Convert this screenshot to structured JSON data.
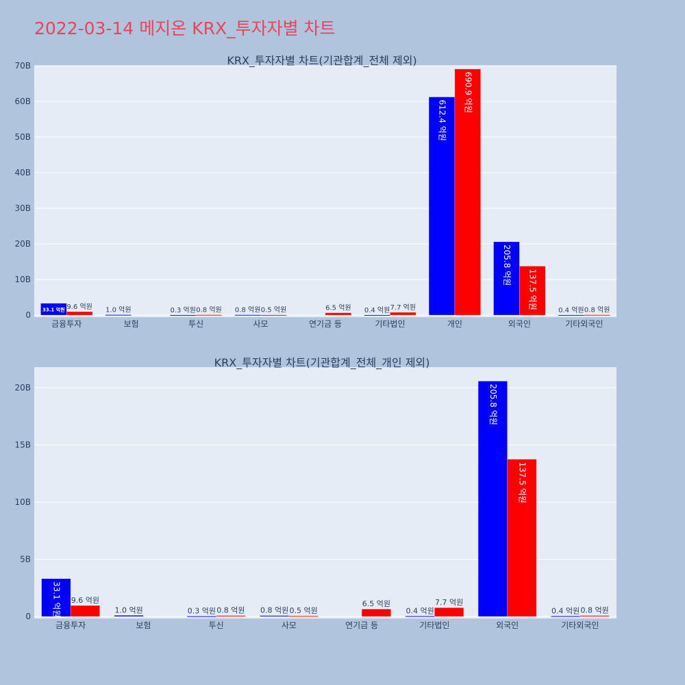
{
  "page_title": "2022-03-14 메지온 KRX_투자자별 차트",
  "colors": {
    "buy": "#0000ff",
    "sell": "#ff0000",
    "plot_bg": "#e5ecf6",
    "page_bg": "#b0c4de",
    "title": "#e8445a"
  },
  "chart_data": [
    {
      "type": "bar",
      "title": "KRX_투자자별 차트(기관합계_전체 제외)",
      "categories": [
        "금융투자",
        "보험",
        "투신",
        "사모",
        "연기금 등",
        "기타법인",
        "개인",
        "외국인",
        "기타외국인"
      ],
      "ylim": [
        0,
        70
      ],
      "yticks": [
        0,
        10,
        20,
        30,
        40,
        50,
        60,
        70
      ],
      "ytick_labels": [
        "0",
        "10B",
        "20B",
        "30B",
        "40B",
        "50B",
        "60B",
        "70B"
      ],
      "grid": true,
      "series": [
        {
          "color": "#0000ff",
          "values": [
            3.31,
            0.1,
            0.03,
            0.08,
            0,
            0.04,
            61.24,
            20.58,
            0.04
          ],
          "labels": [
            "33.1 억원",
            "1.0 억원",
            "0.3 억원",
            "0.8 억원",
            "",
            "0.4 억원",
            "612.4 억원",
            "205.8 억원",
            "0.4 억원"
          ]
        },
        {
          "color": "#ff0000",
          "values": [
            0.96,
            0,
            0.08,
            0.05,
            0.65,
            0.77,
            69.09,
            13.75,
            0.08
          ],
          "labels": [
            "9.6 억원",
            "",
            "0.8 억원",
            "0.5 억원",
            "6.5 억원",
            "7.7 억원",
            "690.9 억원",
            "137.5 억원",
            "0.8 억원"
          ]
        }
      ]
    },
    {
      "type": "bar",
      "title": "KRX_투자자별 차트(기관합계_전체_개인 제외)",
      "categories": [
        "금융투자",
        "보험",
        "투신",
        "사모",
        "연기금 등",
        "기타법인",
        "외국인",
        "기타외국인"
      ],
      "ylim": [
        0,
        21.8
      ],
      "yticks": [
        0,
        5,
        10,
        15,
        20
      ],
      "ytick_labels": [
        "0",
        "5B",
        "10B",
        "15B",
        "20B"
      ],
      "grid": true,
      "series": [
        {
          "color": "#0000ff",
          "values": [
            3.31,
            0.1,
            0.03,
            0.08,
            0,
            0.04,
            20.58,
            0.04
          ],
          "labels": [
            "33.1 억원",
            "1.0 억원",
            "0.3 억원",
            "0.8 억원",
            "",
            "0.4 억원",
            "205.8 억원",
            "0.4 억원"
          ]
        },
        {
          "color": "#ff0000",
          "values": [
            0.96,
            0,
            0.08,
            0.05,
            0.65,
            0.77,
            13.75,
            0.08
          ],
          "labels": [
            "9.6 억원",
            "",
            "0.8 억원",
            "0.5 억원",
            "6.5 억원",
            "7.7 억원",
            "137.5 억원",
            "0.8 억원"
          ]
        }
      ]
    }
  ]
}
